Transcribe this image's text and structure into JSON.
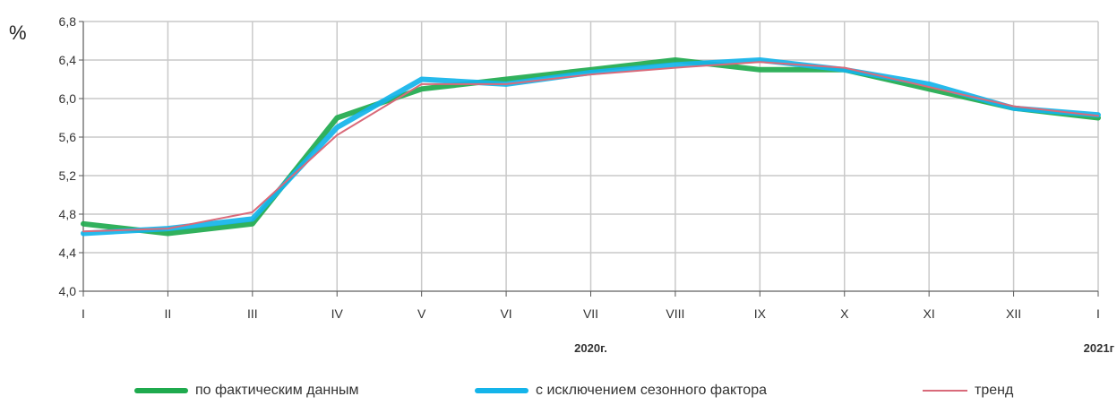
{
  "chart_data": {
    "type": "line",
    "unit": "%",
    "categories": [
      "I",
      "II",
      "III",
      "IV",
      "V",
      "VI",
      "VII",
      "VIII",
      "IX",
      "X",
      "XI",
      "XII",
      "I"
    ],
    "year_labels": [
      {
        "text": "2020г.",
        "category_index": 6
      },
      {
        "text": "2021г",
        "category_index": 12
      }
    ],
    "ylim": [
      4.0,
      6.8
    ],
    "yticks": [
      "4,0",
      "4,4",
      "4,8",
      "5,2",
      "5,6",
      "6,0",
      "6,4",
      "6,8"
    ],
    "ytick_values": [
      4.0,
      4.4,
      4.8,
      5.2,
      5.6,
      6.0,
      6.4,
      6.8
    ],
    "grid": true,
    "legend_position": "bottom",
    "series": [
      {
        "name": "по фактическим данным",
        "color": "#1faa4e",
        "width": 6,
        "values": [
          4.7,
          4.6,
          4.7,
          5.8,
          6.1,
          6.2,
          6.3,
          6.4,
          6.3,
          6.3,
          6.1,
          5.9,
          5.8
        ]
      },
      {
        "name": "с исключением сезонного фактора",
        "color": "#14b4ea",
        "width": 6,
        "values": [
          4.6,
          4.65,
          4.75,
          5.7,
          6.2,
          6.15,
          6.27,
          6.35,
          6.4,
          6.3,
          6.15,
          5.9,
          5.83
        ]
      },
      {
        "name": "тренд",
        "color": "#d96a7a",
        "width": 2,
        "values": [
          4.62,
          4.65,
          4.82,
          5.62,
          6.15,
          6.15,
          6.25,
          6.32,
          6.38,
          6.32,
          6.12,
          5.92,
          5.82
        ]
      }
    ]
  }
}
